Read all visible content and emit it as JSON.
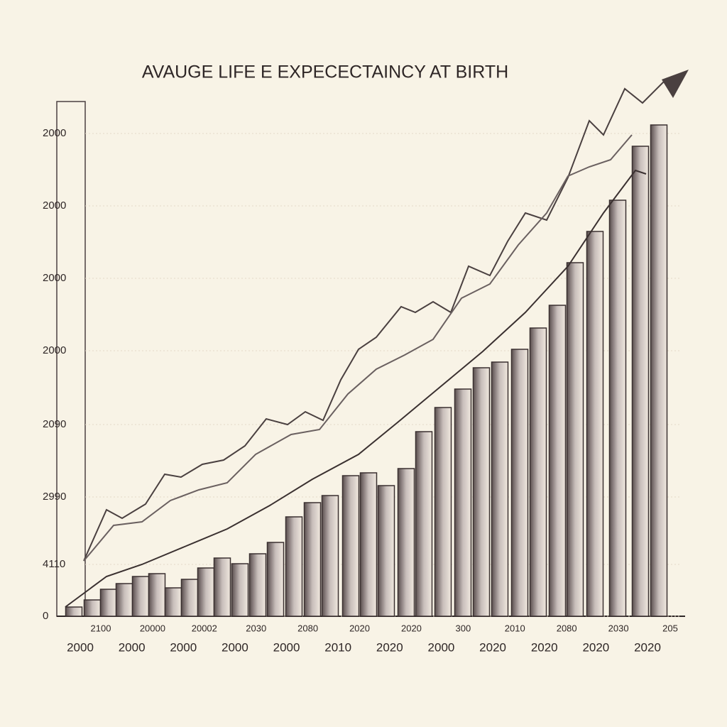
{
  "chart_data": {
    "type": "bar",
    "title": "AVAUGE LIFE E EXPECECTAINCY AT BIRTH",
    "ylim": [
      0,
      760
    ],
    "xlim": [
      0,
      880
    ],
    "yticks": [
      0,
      {
        "value": 73,
        "label": "4110"
      },
      {
        "value": 168,
        "label": "2990"
      },
      {
        "value": 270,
        "label": "2090"
      },
      {
        "value": 374,
        "label": "2000"
      },
      {
        "value": 476,
        "label": "2000"
      },
      {
        "value": 578,
        "label": "2000"
      },
      {
        "value": 680,
        "label": "2000"
      }
    ],
    "grid": true,
    "x_labels_upper": [
      "2100",
      "20000",
      "20002",
      "2030",
      "2080",
      "2020",
      "2020",
      "300",
      "2010",
      "2080",
      "2030",
      "205"
    ],
    "x_labels_lower": [
      "2000",
      "2000",
      "2000",
      "2000",
      "2000",
      "2010",
      "2020",
      "2000",
      "2020",
      "2020",
      "2020",
      "2020"
    ],
    "series": [
      {
        "type": "bar",
        "color": "#8a7e7e",
        "x": [
          24,
          50,
          73,
          95,
          118,
          141,
          164,
          187,
          210,
          233,
          258,
          283,
          308,
          334,
          360,
          385,
          414,
          439,
          464,
          492,
          517,
          544,
          572,
          598,
          624,
          652,
          678,
          705,
          730,
          758,
          790,
          822,
          848
        ],
        "values": [
          13,
          23,
          38,
          46,
          56,
          60,
          40,
          52,
          68,
          82,
          74,
          88,
          104,
          140,
          160,
          170,
          198,
          202,
          184,
          208,
          260,
          294,
          320,
          350,
          358,
          376,
          406,
          438,
          498,
          542,
          586,
          662,
          692
        ]
      },
      {
        "type": "line",
        "color": "#4a4040",
        "x": [
          38,
          70,
          92,
          125,
          152,
          175,
          205,
          235,
          265,
          295,
          325,
          350,
          375,
          400,
          425,
          450,
          485,
          505,
          530,
          555,
          580,
          610,
          635,
          660,
          690,
          720,
          750,
          770,
          800,
          825,
          860
        ],
        "values": [
          78,
          150,
          138,
          158,
          200,
          196,
          214,
          220,
          240,
          278,
          270,
          288,
          276,
          333,
          376,
          393,
          436,
          428,
          443,
          428,
          493,
          480,
          528,
          568,
          558,
          618,
          698,
          678,
          743,
          723,
          758
        ]
      },
      {
        "type": "line",
        "color": "#6a6060",
        "x": [
          38,
          80,
          120,
          160,
          200,
          240,
          280,
          330,
          370,
          410,
          450,
          490,
          530,
          570,
          610,
          650,
          690,
          720,
          750,
          780,
          810
        ],
        "values": [
          78,
          128,
          133,
          163,
          178,
          188,
          228,
          256,
          263,
          313,
          348,
          368,
          390,
          448,
          468,
          523,
          568,
          620,
          633,
          643,
          678
        ]
      },
      {
        "type": "line",
        "color": "#3a3030",
        "x": [
          12,
          70,
          120,
          180,
          240,
          300,
          360,
          425,
          480,
          540,
          600,
          660,
          720,
          770,
          815,
          830
        ],
        "values": [
          13,
          56,
          73,
          98,
          123,
          156,
          193,
          228,
          273,
          323,
          373,
          428,
          493,
          568,
          628,
          623
        ]
      }
    ]
  }
}
